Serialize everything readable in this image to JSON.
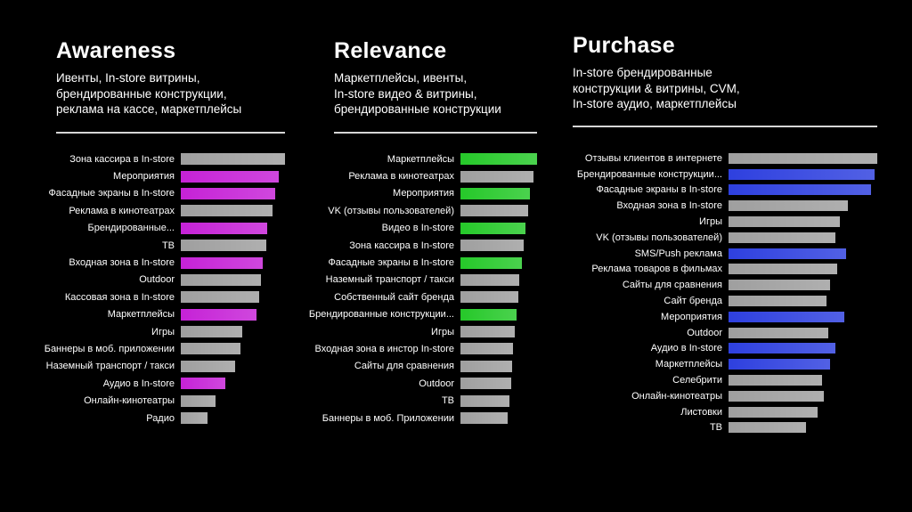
{
  "page": {
    "background": "#000000",
    "text_color": "#ffffff",
    "divider_color": "#d6d6d6"
  },
  "chart_data": [
    {
      "type": "bar",
      "orientation": "horizontal",
      "title": "Awareness",
      "subtitle": "Ивенты, In-store витрины,\nбрендированные конструкции,\nреклама на кассе, маркетплейсы",
      "legend": "none",
      "grid": false,
      "xlim": [
        0,
        100
      ],
      "bar_color": "#999999",
      "accent_color": "#c214d4",
      "categories": [
        "Зона кассира в In-store",
        "Мероприятия",
        "Фасадные экраны в In-store",
        "Реклама в кинотеатрах",
        "Брендированные...",
        "ТВ",
        "Входная зона в In-store",
        "Outdoor",
        "Кассовая зона в In-store",
        "Маркетплейсы",
        "Игры",
        "Баннеры в моб. приложении",
        "Наземный транспорт / такси",
        "Аудио в In-store",
        "Онлайн-кинотеатры",
        "Радио"
      ],
      "values": [
        100,
        94,
        91,
        88,
        83,
        82,
        79,
        77,
        75,
        73,
        59,
        57,
        52,
        43,
        33,
        26
      ],
      "highlighted": [
        false,
        true,
        true,
        false,
        true,
        false,
        true,
        false,
        false,
        true,
        false,
        false,
        false,
        true,
        false,
        false
      ]
    },
    {
      "type": "bar",
      "orientation": "horizontal",
      "title": "Relevance",
      "subtitle": "Маркетплейсы, ивенты,\nIn-store видео & витрины,\nбрендированные конструкции",
      "legend": "none",
      "grid": false,
      "xlim": [
        0,
        100
      ],
      "bar_color": "#999999",
      "accent_color": "#18c51c",
      "categories": [
        "Маркетплейсы",
        "Реклама в кинотеатрах",
        "Мероприятия",
        "VK (отзывы пользователей)",
        "Видео в In-store",
        "Зона кассира в In-store",
        "Фасадные экраны в In-store",
        "Наземный транспорт / такси",
        "Собственный сайт бренда",
        "Брендированные конструкции...",
        "Игры",
        "Входная зона в инстор In-store",
        "Сайты для сравнения",
        "Outdoor",
        "ТВ",
        "Баннеры в моб. Приложении"
      ],
      "values": [
        100,
        95,
        91,
        88,
        85,
        82,
        80,
        77,
        75,
        73,
        71,
        69,
        67,
        66,
        64,
        62
      ],
      "highlighted": [
        true,
        false,
        true,
        false,
        true,
        false,
        true,
        false,
        false,
        true,
        false,
        false,
        false,
        false,
        false,
        false
      ]
    },
    {
      "type": "bar",
      "orientation": "horizontal",
      "title": "Purchase",
      "subtitle": "In-store брендированные\nконструкции & витрины, CVM,\nIn-store аудио, маркетплейсы",
      "legend": "none",
      "grid": false,
      "xlim": [
        0,
        100
      ],
      "bar_color": "#999999",
      "accent_color": "#2134dd",
      "categories": [
        "Отзывы клиентов в интернете",
        "Брендированные конструкции...",
        "Фасадные экраны в In-store",
        "Входная зона в In-store",
        "Игры",
        "VK (отзывы пользователей)",
        "SMS/Push реклама",
        "Реклама товаров в фильмах",
        "Сайты для сравнения",
        "Сайт бренда",
        "Мероприятия",
        "Outdoor",
        "Аудио в In-store",
        "Маркетплейсы",
        "Селебрити",
        "Онлайн-кинотеатры",
        "Листовки",
        "ТВ"
      ],
      "values": [
        100,
        98,
        96,
        80,
        75,
        72,
        79,
        73,
        68,
        66,
        78,
        67,
        72,
        68,
        63,
        64,
        60,
        52
      ],
      "highlighted": [
        false,
        true,
        true,
        false,
        false,
        false,
        true,
        false,
        false,
        false,
        true,
        false,
        true,
        true,
        false,
        false,
        false,
        false
      ]
    }
  ]
}
